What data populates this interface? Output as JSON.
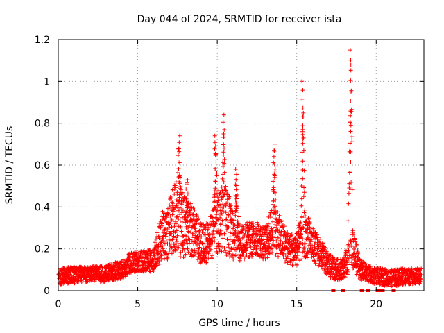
{
  "chart_data": {
    "type": "scatter",
    "title": "Day 044 of 2024, SRMTID for receiver ista",
    "xlabel": "GPS time / hours",
    "ylabel": "SRMTID / TECUs",
    "xlim": [
      0,
      23
    ],
    "ylim": [
      0,
      1.2
    ],
    "xticks": [
      0,
      5,
      10,
      15,
      20
    ],
    "xtick_labels": [
      "0",
      "5",
      "10",
      "15",
      "20"
    ],
    "yticks": [
      0,
      0.2,
      0.4,
      0.6,
      0.8,
      1.0,
      1.2
    ],
    "ytick_labels": [
      "0",
      "0.2",
      "0.4",
      "0.6",
      "0.8",
      "1",
      "1.2"
    ],
    "grid": true,
    "marker": "plus",
    "marker_color": "#ff0000",
    "gap_marker_color": "#ff0000",
    "envelope": [
      {
        "x": 0.0,
        "base": 0.07,
        "spread": 0.04
      },
      {
        "x": 1.0,
        "base": 0.075,
        "spread": 0.04
      },
      {
        "x": 2.0,
        "base": 0.08,
        "spread": 0.035
      },
      {
        "x": 3.0,
        "base": 0.08,
        "spread": 0.04
      },
      {
        "x": 4.0,
        "base": 0.1,
        "spread": 0.045
      },
      {
        "x": 4.5,
        "base": 0.13,
        "spread": 0.05
      },
      {
        "x": 5.0,
        "base": 0.14,
        "spread": 0.05
      },
      {
        "x": 5.5,
        "base": 0.14,
        "spread": 0.05
      },
      {
        "x": 6.0,
        "base": 0.15,
        "spread": 0.06
      },
      {
        "x": 6.5,
        "base": 0.25,
        "spread": 0.12
      },
      {
        "x": 7.0,
        "base": 0.3,
        "spread": 0.15
      },
      {
        "x": 7.5,
        "base": 0.35,
        "spread": 0.2
      },
      {
        "x": 8.0,
        "base": 0.3,
        "spread": 0.15
      },
      {
        "x": 8.5,
        "base": 0.28,
        "spread": 0.12
      },
      {
        "x": 9.0,
        "base": 0.22,
        "spread": 0.1
      },
      {
        "x": 9.5,
        "base": 0.24,
        "spread": 0.1
      },
      {
        "x": 10.0,
        "base": 0.32,
        "spread": 0.15
      },
      {
        "x": 10.5,
        "base": 0.35,
        "spread": 0.18
      },
      {
        "x": 11.0,
        "base": 0.27,
        "spread": 0.12
      },
      {
        "x": 11.5,
        "base": 0.24,
        "spread": 0.1
      },
      {
        "x": 12.0,
        "base": 0.24,
        "spread": 0.09
      },
      {
        "x": 12.5,
        "base": 0.25,
        "spread": 0.08
      },
      {
        "x": 13.0,
        "base": 0.22,
        "spread": 0.08
      },
      {
        "x": 13.5,
        "base": 0.3,
        "spread": 0.12
      },
      {
        "x": 14.0,
        "base": 0.25,
        "spread": 0.1
      },
      {
        "x": 14.5,
        "base": 0.2,
        "spread": 0.08
      },
      {
        "x": 15.0,
        "base": 0.2,
        "spread": 0.08
      },
      {
        "x": 15.5,
        "base": 0.28,
        "spread": 0.12
      },
      {
        "x": 16.0,
        "base": 0.22,
        "spread": 0.08
      },
      {
        "x": 16.5,
        "base": 0.18,
        "spread": 0.07
      },
      {
        "x": 17.0,
        "base": 0.12,
        "spread": 0.06
      },
      {
        "x": 17.5,
        "base": 0.1,
        "spread": 0.05
      },
      {
        "x": 18.0,
        "base": 0.11,
        "spread": 0.05
      },
      {
        "x": 18.5,
        "base": 0.2,
        "spread": 0.1
      },
      {
        "x": 19.0,
        "base": 0.1,
        "spread": 0.05
      },
      {
        "x": 19.5,
        "base": 0.08,
        "spread": 0.04
      },
      {
        "x": 20.0,
        "base": 0.07,
        "spread": 0.04
      },
      {
        "x": 21.0,
        "base": 0.06,
        "spread": 0.04
      },
      {
        "x": 22.0,
        "base": 0.07,
        "spread": 0.04
      },
      {
        "x": 22.8,
        "base": 0.07,
        "spread": 0.035
      }
    ],
    "spikes": [
      {
        "x": 7.6,
        "peak": 0.74,
        "width": 0.35
      },
      {
        "x": 8.1,
        "peak": 0.53,
        "width": 0.3
      },
      {
        "x": 9.9,
        "peak": 0.74,
        "width": 0.3
      },
      {
        "x": 10.4,
        "peak": 0.84,
        "width": 0.3
      },
      {
        "x": 11.2,
        "peak": 0.58,
        "width": 0.2
      },
      {
        "x": 13.6,
        "peak": 0.7,
        "width": 0.25
      },
      {
        "x": 15.4,
        "peak": 1.0,
        "width": 0.2
      },
      {
        "x": 18.4,
        "peak": 1.15,
        "width": 0.2
      }
    ],
    "gap_markers_x": [
      17.3,
      17.9,
      19.1,
      19.5,
      20.1,
      20.3,
      20.4,
      21.1
    ]
  }
}
